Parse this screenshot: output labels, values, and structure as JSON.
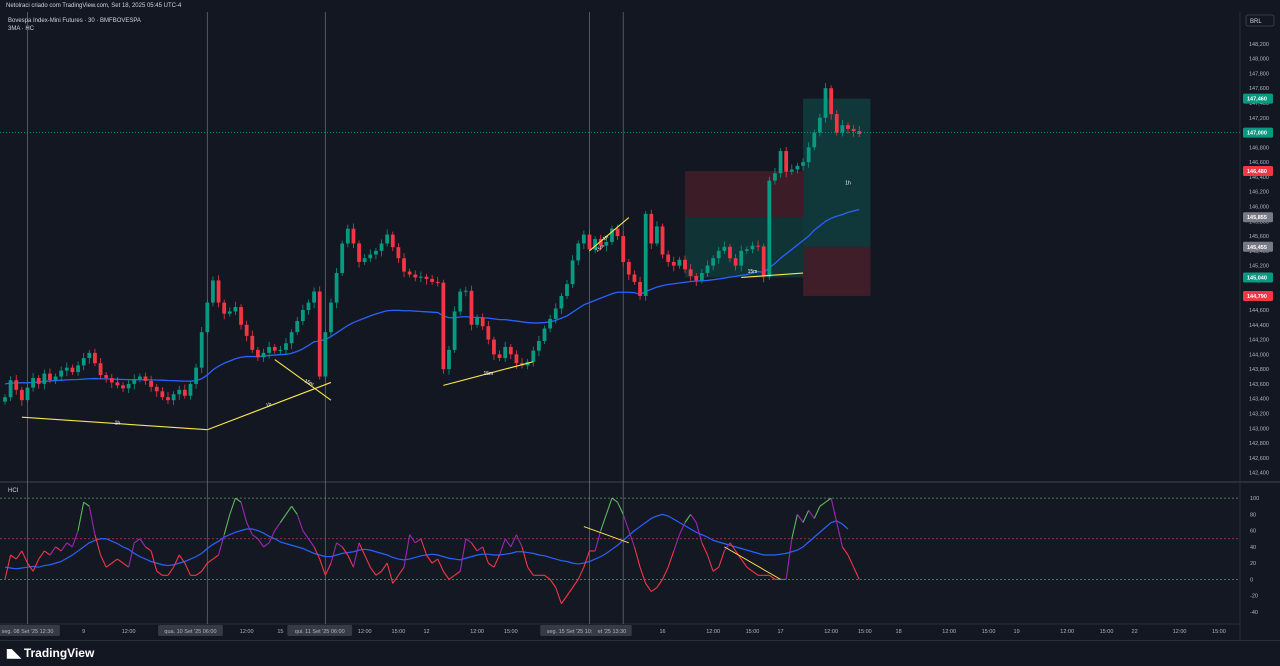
{
  "header": {
    "caption": "Netolraci criado com TradingView.com, Set 18, 2025 05:45 UTC-4"
  },
  "symbol": {
    "title": "Bovespa Index-Mini Futures · 30 · BMFBOVESPA",
    "indicator": "3MA · HC"
  },
  "currency": "BRL",
  "price_axis": {
    "ticks": [
      "148,200",
      "148,000",
      "147,800",
      "147,600",
      "147,400",
      "147,200",
      "146,800",
      "146,600",
      "146,400",
      "146,200",
      "146,000",
      "145,800",
      "145,600",
      "145,400",
      "145,200",
      "145,000",
      "144,800",
      "144,600",
      "144,400",
      "144,200",
      "144,000",
      "143,800",
      "143,600",
      "143,400",
      "143,200",
      "143,000",
      "142,800",
      "142,600",
      "142,400"
    ],
    "tick_values": [
      148200,
      148000,
      147800,
      147600,
      147400,
      147200,
      146800,
      146600,
      146400,
      146200,
      146000,
      145800,
      145600,
      145400,
      145200,
      145000,
      144800,
      144600,
      144400,
      144200,
      144000,
      143800,
      143600,
      143400,
      143200,
      143000,
      142800,
      142600,
      142400
    ],
    "ylim": [
      142300,
      148550
    ]
  },
  "price_labels": [
    {
      "text": "147,460",
      "value": 147460,
      "color": "#089981"
    },
    {
      "text": "147,000",
      "value": 147000,
      "color": "#089981"
    },
    {
      "text": "146,480",
      "value": 146480,
      "color": "#f23645"
    },
    {
      "text": "145,855",
      "value": 145855,
      "color": "#787b86"
    },
    {
      "text": "145,455",
      "value": 145455,
      "color": "#787b86"
    },
    {
      "text": "145,040",
      "value": 145040,
      "color": "#089981"
    },
    {
      "text": "144,790",
      "value": 144790,
      "color": "#f23645"
    }
  ],
  "current_price": 147000,
  "time_axis": [
    {
      "text": "seg. 08 Set '25 12:30",
      "bar": 4,
      "highlight": true
    },
    {
      "text": "9",
      "bar": 14
    },
    {
      "text": "12:00",
      "bar": 22
    },
    {
      "text": "qua. 10 Set '25 06:00",
      "bar": 33,
      "highlight": true
    },
    {
      "text": "12:00",
      "bar": 43
    },
    {
      "text": "15",
      "bar": 49
    },
    {
      "text": "qui. 11 Set '25 06:00",
      "bar": 56,
      "highlight": true
    },
    {
      "text": "12:00",
      "bar": 64
    },
    {
      "text": "15:00",
      "bar": 70
    },
    {
      "text": "12",
      "bar": 75
    },
    {
      "text": "12:00",
      "bar": 84
    },
    {
      "text": "15:00",
      "bar": 90
    },
    {
      "text": "seg. 15 Set '25 10:30",
      "bar": 101,
      "highlight": true
    },
    {
      "text": "et '25 13:30",
      "bar": 108,
      "highlight": true
    },
    {
      "text": "16",
      "bar": 117
    },
    {
      "text": "12:00",
      "bar": 126
    },
    {
      "text": "15:00",
      "bar": 133
    },
    {
      "text": "17",
      "bar": 138
    },
    {
      "text": "12:00",
      "bar": 147
    },
    {
      "text": "15:00",
      "bar": 153
    },
    {
      "text": "18",
      "bar": 159
    },
    {
      "text": "12:00",
      "bar": 168
    },
    {
      "text": "15:00",
      "bar": 175
    },
    {
      "text": "19",
      "bar": 180
    },
    {
      "text": "12:00",
      "bar": 189
    },
    {
      "text": "15:00",
      "bar": 196
    },
    {
      "text": "22",
      "bar": 201
    },
    {
      "text": "12:00",
      "bar": 209
    },
    {
      "text": "15:00",
      "bar": 216
    }
  ],
  "session_lines": [
    4,
    36,
    57,
    104,
    110
  ],
  "chart_data": {
    "type": "candlestick",
    "title": "Bovespa Index-Mini Futures · 30 · BMFBOVESPA",
    "ylim": [
      142300,
      148550
    ],
    "close": [
      143420,
      143650,
      143520,
      143380,
      143550,
      143680,
      143600,
      143740,
      143650,
      143700,
      143780,
      143820,
      143760,
      143850,
      143950,
      144020,
      143880,
      143720,
      143680,
      143620,
      143580,
      143540,
      143600,
      143660,
      143700,
      143640,
      143560,
      143500,
      143420,
      143380,
      143460,
      143520,
      143440,
      143600,
      143820,
      144300,
      144700,
      145000,
      144700,
      144550,
      144580,
      144640,
      144400,
      144250,
      144060,
      143960,
      144020,
      144100,
      144050,
      144060,
      144150,
      144300,
      144450,
      144600,
      144700,
      144850,
      143700,
      144300,
      144700,
      145100,
      145500,
      145700,
      145500,
      145250,
      145300,
      145350,
      145400,
      145500,
      145620,
      145450,
      145300,
      145120,
      145080,
      145040,
      145050,
      145020,
      144980,
      144970,
      143800,
      144060,
      144580,
      144850,
      144860,
      144400,
      144500,
      144380,
      144200,
      144000,
      143950,
      144100,
      144000,
      143880,
      143850,
      143900,
      144050,
      144180,
      144350,
      144480,
      144620,
      144790,
      144950,
      145270,
      145500,
      145620,
      145420,
      145560,
      145470,
      145520,
      145700,
      145600,
      145250,
      145080,
      144980,
      144790,
      145900,
      145500,
      145730,
      145350,
      145250,
      145200,
      145280,
      145150,
      145060,
      145000,
      145100,
      145200,
      145300,
      145400,
      145455,
      145300,
      145200,
      145400,
      145420,
      145470,
      145460,
      145050,
      146350,
      146450,
      146750,
      146470,
      146500,
      146550,
      146600,
      146800,
      147000,
      147200,
      147600,
      147250,
      147000,
      147100,
      147050,
      147020,
      146980
    ],
    "ma": [
      143600,
      143610,
      143615,
      143615,
      143615,
      143620,
      143625,
      143635,
      143640,
      143645,
      143650,
      143655,
      143658,
      143660,
      143665,
      143670,
      143672,
      143670,
      143668,
      143665,
      143662,
      143660,
      143658,
      143657,
      143657,
      143656,
      143655,
      143653,
      143650,
      143646,
      143644,
      143640,
      143638,
      143637,
      143645,
      143670,
      143720,
      143790,
      143840,
      143880,
      143910,
      143940,
      143960,
      143970,
      143970,
      143970,
      143975,
      143985,
      143990,
      143995,
      144000,
      144015,
      144040,
      144075,
      144120,
      144170,
      144180,
      144200,
      144240,
      144290,
      144340,
      144390,
      144430,
      144460,
      144490,
      144520,
      144545,
      144570,
      144590,
      144595,
      144595,
      144590,
      144590,
      144585,
      144580,
      144575,
      144570,
      144565,
      144520,
      144495,
      144495,
      144505,
      144510,
      144500,
      144500,
      144495,
      144490,
      144480,
      144470,
      144470,
      144460,
      144450,
      144440,
      144430,
      144425,
      144425,
      144430,
      144440,
      144460,
      144490,
      144520,
      144570,
      144620,
      144670,
      144700,
      144730,
      144760,
      144790,
      144820,
      144840,
      144840,
      144840,
      144835,
      144810,
      144850,
      144880,
      144910,
      144930,
      144945,
      144955,
      144965,
      144975,
      144985,
      144990,
      144995,
      145000,
      145010,
      145020,
      145030,
      145045,
      145055,
      145070,
      145080,
      145100,
      145120,
      145110,
      145170,
      145230,
      145300,
      145360,
      145420,
      145480,
      145540,
      145600,
      145680,
      145740,
      145800,
      145840,
      145870,
      145890,
      145920,
      145940,
      145960
    ],
    "hci_ticks": [
      "100",
      "80",
      "60",
      "40",
      "20",
      "0",
      "-20",
      "-40"
    ],
    "hci_tick_values": [
      100,
      80,
      60,
      40,
      20,
      0,
      -20,
      -40
    ],
    "hci_ylim": [
      -50,
      110
    ],
    "hci_fast": [
      0,
      30,
      25,
      35,
      20,
      10,
      25,
      35,
      30,
      40,
      35,
      45,
      40,
      60,
      95,
      90,
      55,
      30,
      15,
      20,
      25,
      20,
      15,
      45,
      50,
      40,
      35,
      10,
      5,
      5,
      15,
      30,
      20,
      5,
      5,
      10,
      20,
      25,
      30,
      55,
      80,
      100,
      95,
      70,
      55,
      50,
      40,
      45,
      60,
      70,
      80,
      90,
      80,
      60,
      50,
      40,
      25,
      5,
      20,
      45,
      40,
      30,
      15,
      45,
      30,
      15,
      5,
      10,
      20,
      -5,
      5,
      15,
      55,
      45,
      50,
      30,
      20,
      25,
      10,
      0,
      5,
      10,
      50,
      45,
      35,
      40,
      20,
      15,
      30,
      50,
      40,
      55,
      40,
      15,
      5,
      5,
      5,
      0,
      -10,
      -30,
      -20,
      -10,
      0,
      15,
      35,
      35,
      60,
      80,
      100,
      95,
      80,
      60,
      40,
      15,
      -5,
      -15,
      -10,
      0,
      15,
      35,
      55,
      70,
      80,
      70,
      45,
      30,
      10,
      15,
      35,
      45,
      35,
      25,
      15,
      10,
      5,
      5,
      5,
      0,
      0,
      0,
      50,
      80,
      70,
      85,
      75,
      90,
      95,
      100,
      70,
      40,
      30,
      15,
      0
    ],
    "hci_slow": [
      15,
      14,
      13,
      14,
      15,
      16,
      15,
      17,
      18,
      20,
      22,
      26,
      30,
      35,
      40,
      45,
      48,
      50,
      50,
      47,
      44,
      40,
      37,
      32,
      28,
      25,
      22,
      20,
      18,
      17,
      18,
      20,
      22,
      25,
      28,
      32,
      38,
      43,
      47,
      52,
      55,
      58,
      60,
      62,
      62,
      60,
      57,
      53,
      50,
      46,
      44,
      42,
      40,
      38,
      35,
      32,
      30,
      28,
      28,
      30,
      32,
      33,
      34,
      36,
      37,
      36,
      34,
      32,
      30,
      27,
      25,
      24,
      25,
      27,
      29,
      30,
      31,
      30,
      28,
      26,
      25,
      24,
      26,
      28,
      30,
      31,
      31,
      30,
      30,
      31,
      32,
      34,
      34,
      33,
      32,
      30,
      29,
      27,
      25,
      23,
      22,
      20,
      19,
      20,
      22,
      25,
      28,
      32,
      37,
      42,
      48,
      54,
      60,
      65,
      70,
      75,
      78,
      80,
      78,
      74,
      70,
      66,
      62,
      58,
      55,
      52,
      48,
      46,
      44,
      42,
      40,
      38,
      36,
      34,
      32,
      30,
      30,
      30,
      31,
      32,
      34,
      36,
      40,
      46,
      52,
      58,
      64,
      70,
      72,
      68,
      62
    ],
    "annotations": [
      "1h",
      "1h",
      "15m",
      "15m",
      "1h",
      "15m",
      "15m",
      "1h"
    ]
  }
}
